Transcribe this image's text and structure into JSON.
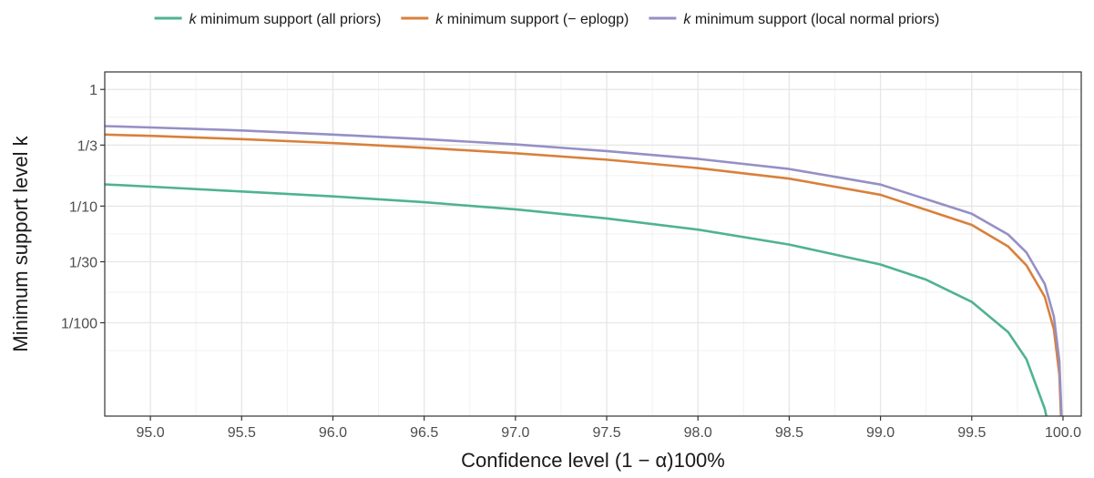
{
  "chart_data": {
    "type": "line",
    "title": "",
    "xlabel": "Confidence level (1 − α)100%",
    "ylabel": "Minimum support level k",
    "xlim": [
      94.75,
      100.1
    ],
    "ylim_log10": [
      -2.8,
      0.15
    ],
    "y_scale": "log",
    "grid": true,
    "legend_position": "top",
    "x_ticks": [
      95.0,
      95.5,
      96.0,
      96.5,
      97.0,
      97.5,
      98.0,
      98.5,
      99.0,
      99.5,
      100.0
    ],
    "x_tick_labels": [
      "95.0",
      "95.5",
      "96.0",
      "96.5",
      "97.0",
      "97.5",
      "98.0",
      "98.5",
      "99.0",
      "99.5",
      "100.0"
    ],
    "y_ticks": [
      1,
      0.3333,
      0.1,
      0.03333,
      0.01
    ],
    "y_tick_labels": [
      "1",
      "1/3",
      "1/10",
      "1/30",
      "1/100"
    ],
    "series": [
      {
        "name": "k minimum support (all priors)",
        "legend_k": "k",
        "legend_rest": " minimum support (all priors)",
        "color": "#4fb38f",
        "x": [
          94.75,
          95.0,
          95.5,
          96.0,
          96.5,
          97.0,
          97.5,
          98.0,
          98.5,
          99.0,
          99.25,
          99.5,
          99.7,
          99.8,
          99.9,
          99.93
        ],
        "y": [
          0.1535,
          0.1468,
          0.1333,
          0.1212,
          0.108,
          0.0937,
          0.0784,
          0.0629,
          0.0468,
          0.0316,
          0.0234,
          0.0151,
          0.0083,
          0.00486,
          0.00183,
          0.00111
        ]
      },
      {
        "name": "k minimum support (− ep log p)",
        "legend_k": "k",
        "legend_rest": " minimum support (− eplogp)",
        "color": "#d9803b",
        "x": [
          94.75,
          95.0,
          95.5,
          96.0,
          96.5,
          97.0,
          97.5,
          98.0,
          98.5,
          99.0,
          99.5,
          99.7,
          99.8,
          99.9,
          99.95,
          99.98,
          99.995
        ],
        "y": [
          0.41,
          0.4,
          0.375,
          0.347,
          0.316,
          0.284,
          0.25,
          0.212,
          0.172,
          0.125,
          0.069,
          0.045,
          0.031,
          0.0167,
          0.0088,
          0.0036,
          0.0009
        ]
      },
      {
        "name": "k minimum support (local normal priors)",
        "legend_k": "k",
        "legend_rest": " minimum support (local normal priors)",
        "color": "#9590c5",
        "x": [
          94.75,
          95.0,
          95.5,
          96.0,
          96.5,
          97.0,
          97.5,
          98.0,
          98.5,
          99.0,
          99.5,
          99.7,
          99.8,
          99.9,
          99.95,
          99.98,
          99.995
        ],
        "y": [
          0.485,
          0.472,
          0.445,
          0.41,
          0.375,
          0.338,
          0.296,
          0.254,
          0.208,
          0.153,
          0.086,
          0.057,
          0.04,
          0.0215,
          0.0113,
          0.0047,
          0.0012
        ]
      }
    ]
  }
}
